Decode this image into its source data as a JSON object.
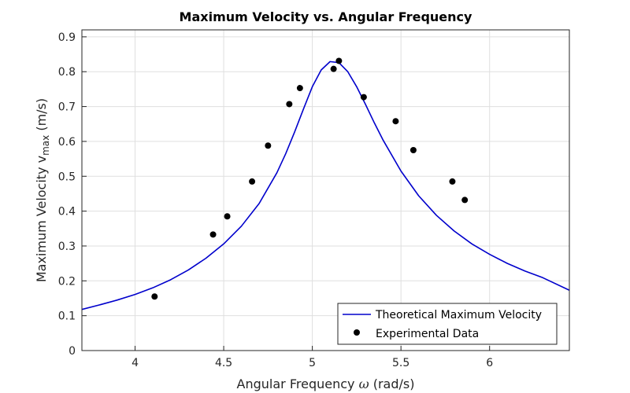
{
  "chart_data": {
    "type": "line",
    "title": "Maximum Velocity vs. Angular Frequency",
    "xlabel": {
      "prefix": "Angular Frequency ",
      "symbol": "ω",
      "suffix": " (rad/s)"
    },
    "ylabel": {
      "prefix": "Maximum Velocity v",
      "subscript": "max",
      "suffix": " (m/s)"
    },
    "xlim": [
      3.7,
      6.45
    ],
    "ylim": [
      0,
      0.92
    ],
    "x_ticks": [
      4,
      4.5,
      5,
      5.5,
      6
    ],
    "x_tick_labels": [
      "4",
      "4.5",
      "5",
      "5.5",
      "6"
    ],
    "y_ticks": [
      0,
      0.1,
      0.2,
      0.3,
      0.4,
      0.5,
      0.6,
      0.7,
      0.8,
      0.9
    ],
    "y_tick_labels": [
      "0",
      "0.1",
      "0.2",
      "0.3",
      "0.4",
      "0.5",
      "0.6",
      "0.7",
      "0.8",
      "0.9"
    ],
    "grid": true,
    "legend_position": "bottom-right",
    "series": [
      {
        "name": "Theoretical Maximum Velocity",
        "kind": "line",
        "color": "#0000cc",
        "x": [
          3.7,
          3.8,
          3.9,
          4.0,
          4.1,
          4.2,
          4.3,
          4.4,
          4.5,
          4.6,
          4.7,
          4.8,
          4.85,
          4.9,
          4.95,
          5.0,
          5.05,
          5.1,
          5.15,
          5.2,
          5.25,
          5.3,
          5.35,
          5.4,
          5.5,
          5.6,
          5.7,
          5.8,
          5.9,
          6.0,
          6.1,
          6.2,
          6.3,
          6.45
        ],
        "y": [
          0.118,
          0.131,
          0.145,
          0.161,
          0.18,
          0.203,
          0.231,
          0.265,
          0.306,
          0.357,
          0.422,
          0.51,
          0.565,
          0.627,
          0.693,
          0.757,
          0.805,
          0.829,
          0.826,
          0.8,
          0.757,
          0.706,
          0.653,
          0.603,
          0.515,
          0.444,
          0.388,
          0.343,
          0.306,
          0.276,
          0.25,
          0.228,
          0.209,
          0.173
        ]
      },
      {
        "name": "Experimental Data",
        "kind": "scatter",
        "color": "#000000",
        "x": [
          4.11,
          4.44,
          4.52,
          4.66,
          4.75,
          4.87,
          4.93,
          5.12,
          5.15,
          5.29,
          5.47,
          5.57,
          5.79,
          5.86
        ],
        "y": [
          0.155,
          0.333,
          0.385,
          0.485,
          0.588,
          0.707,
          0.753,
          0.808,
          0.831,
          0.727,
          0.658,
          0.575,
          0.485,
          0.432
        ]
      }
    ]
  }
}
